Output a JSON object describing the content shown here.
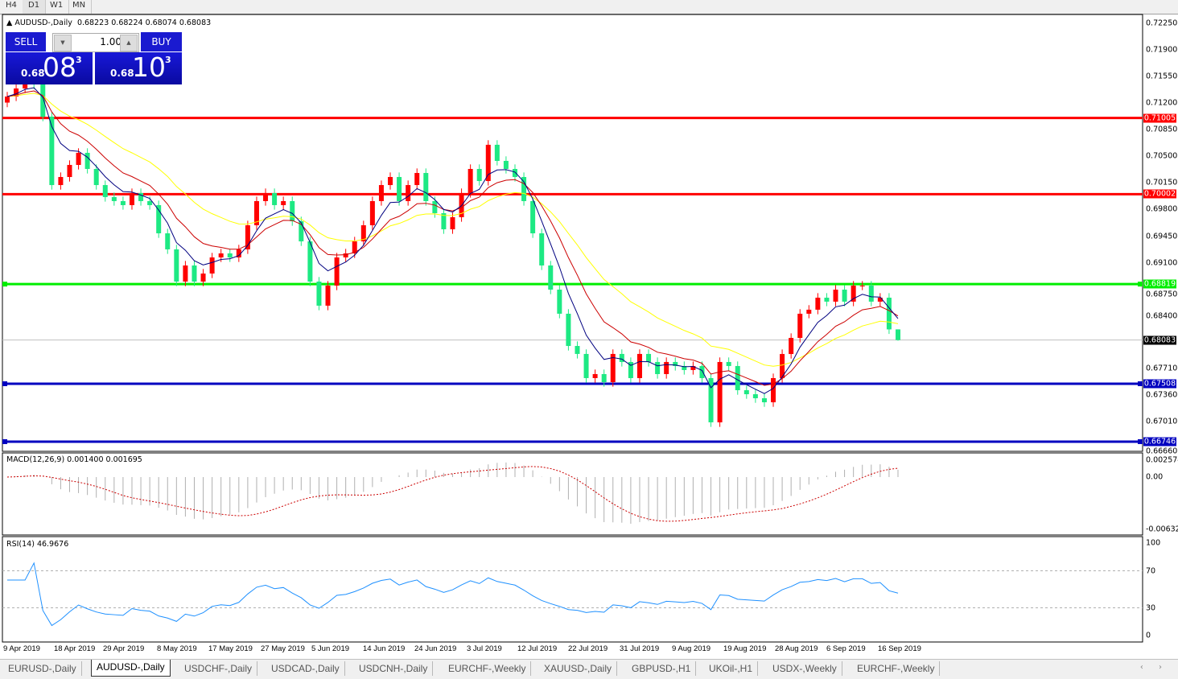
{
  "timeframes": [
    "H4",
    "D1",
    "W1",
    "MN"
  ],
  "header": {
    "symbol": "AUDUSD-,Daily",
    "ohlc": "0.68223 0.68224 0.68074 0.68083"
  },
  "trade_panel": {
    "sell_label": "SELL",
    "buy_label": "BUY",
    "volume": "1.00",
    "sell_small": "0.68",
    "sell_big": "08",
    "sell_sup": "3",
    "buy_small": "0.68",
    "buy_big": "10",
    "buy_sup": "3"
  },
  "colors": {
    "bull": "#ff0000",
    "bear": "#1de983",
    "ma_fast": "#000080",
    "ma_mid": "#cc0000",
    "ma_slow": "#ffff00",
    "macd_hist": "#b0b0b0",
    "macd_signal": "#cc0000",
    "rsi": "#1e90ff"
  },
  "chart_data": {
    "type": "candlestick",
    "symbol": "AUDUSD-",
    "timeframe": "Daily",
    "ylim": [
      0.6666,
      0.7225
    ],
    "y_ticks": [
      "0.72250",
      "0.71900",
      "0.71550",
      "0.71200",
      "0.70850",
      "0.70500",
      "0.70150",
      "0.69800",
      "0.69450",
      "0.69100",
      "0.68750",
      "0.68400",
      "0.67710",
      "0.67360",
      "0.67010",
      "0.66660"
    ],
    "x_ticks": [
      "9 Apr 2019",
      "18 Apr 2019",
      "29 Apr 2019",
      "8 May 2019",
      "17 May 2019",
      "27 May 2019",
      "5 Jun 2019",
      "14 Jun 2019",
      "24 Jun 2019",
      "3 Jul 2019",
      "12 Jul 2019",
      "22 Jul 2019",
      "31 Jul 2019",
      "9 Aug 2019",
      "19 Aug 2019",
      "28 Aug 2019",
      "6 Sep 2019",
      "16 Sep 2019"
    ],
    "closes": [
      0.71287,
      0.71393,
      0.71498,
      0.71446,
      0.71022,
      0.70122,
      0.70228,
      0.70387,
      0.70546,
      0.70334,
      0.70122,
      0.69964,
      0.69911,
      0.69858,
      0.70017,
      0.69911,
      0.69858,
      0.69487,
      0.69276,
      0.68852,
      0.69064,
      0.68852,
      0.68958,
      0.6917,
      0.69223,
      0.6917,
      0.69276,
      0.69593,
      0.69911,
      0.70017,
      0.69858,
      0.69911,
      0.69646,
      0.69381,
      0.68852,
      0.68535,
      0.68799,
      0.6917,
      0.69223,
      0.69381,
      0.69593,
      0.69911,
      0.70122,
      0.70228,
      0.69911,
      0.70122,
      0.70281,
      0.69911,
      0.69752,
      0.6954,
      0.69699,
      0.70017,
      0.70334,
      0.70175,
      0.70652,
      0.7044,
      0.70334,
      0.70228,
      0.69911,
      0.69487,
      0.69064,
      0.68746,
      0.68429,
      0.68005,
      0.679,
      0.67582,
      0.67635,
      0.67529,
      0.679,
      0.67794,
      0.67582,
      0.679,
      0.67794,
      0.67635,
      0.67794,
      0.67741,
      0.67688,
      0.67741,
      0.67582,
      0.67,
      0.67794,
      0.67741,
      0.67423,
      0.6737,
      0.67317,
      0.67264,
      0.67582,
      0.67899,
      0.68111,
      0.68429,
      0.68482,
      0.6864,
      0.68588,
      0.68746,
      0.68588,
      0.68799,
      0.68799,
      0.68588,
      0.6864,
      0.68223,
      0.68083
    ],
    "last_bar": {
      "open": 0.68223,
      "high": 0.68224,
      "low": 0.68074,
      "close": 0.68083
    },
    "horizontal_lines": [
      {
        "price": "0.71005",
        "color": "#ff0000"
      },
      {
        "price": "0.70002",
        "color": "#ff0000"
      },
      {
        "price": "0.68819",
        "color": "#00ee00"
      },
      {
        "price": "0.67508",
        "color": "#0000c0"
      },
      {
        "price": "0.66746",
        "color": "#0000c0"
      }
    ],
    "current_price": "0.68083",
    "indicators": {
      "macd": {
        "label": "MACD(12,26,9) 0.001400 0.001695",
        "ticks": [
          "0.002574",
          "0.00",
          "-0.006326"
        ]
      },
      "rsi": {
        "label": "RSI(14) 46.9676",
        "ticks": [
          "100",
          "70",
          "30",
          "0"
        ],
        "levels": [
          70,
          30
        ]
      }
    }
  },
  "tabs": [
    {
      "label": "EURUSD-,Daily",
      "active": false
    },
    {
      "label": "AUDUSD-,Daily",
      "active": true
    },
    {
      "label": "USDCHF-,Daily",
      "active": false
    },
    {
      "label": "USDCAD-,Daily",
      "active": false
    },
    {
      "label": "USDCNH-,Daily",
      "active": false
    },
    {
      "label": "EURCHF-,Weekly",
      "active": false
    },
    {
      "label": "XAUUSD-,Daily",
      "active": false
    },
    {
      "label": "GBPUSD-,H1",
      "active": false
    },
    {
      "label": "UKOil-,H1",
      "active": false
    },
    {
      "label": "USDX-,Weekly",
      "active": false
    },
    {
      "label": "EURCHF-,Weekly",
      "active": false
    }
  ],
  "tab_scroll": "‹ ›"
}
